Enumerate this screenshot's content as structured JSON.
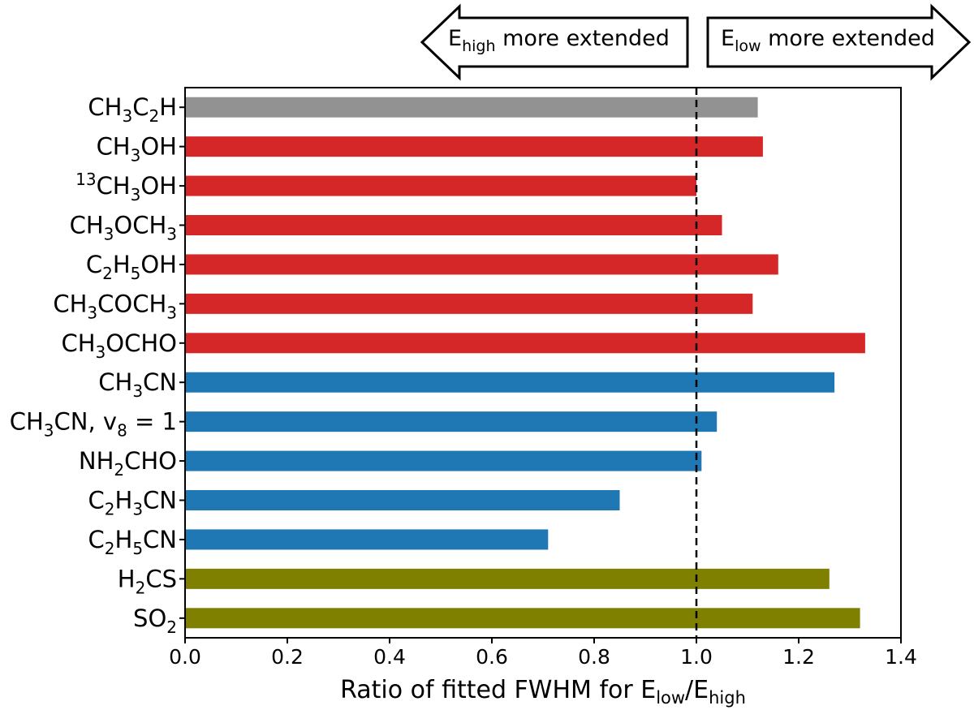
{
  "chart_data": {
    "type": "bar",
    "orientation": "horizontal",
    "categories": [
      "CH3C2H",
      "CH3OH",
      "13CH3OH",
      "CH3OCH3",
      "C2H5OH",
      "CH3COCH3",
      "CH3OCHO",
      "CH3CN",
      "CH3CN, v8 = 1",
      "NH2CHO",
      "C2H3CN",
      "C2H5CN",
      "H2CS",
      "SO2"
    ],
    "values": [
      1.12,
      1.13,
      1.0,
      1.05,
      1.16,
      1.11,
      1.33,
      1.27,
      1.04,
      1.01,
      0.85,
      0.71,
      1.26,
      1.32
    ],
    "bar_colors": [
      "#929292",
      "#d62728",
      "#d62728",
      "#d62728",
      "#d62728",
      "#d62728",
      "#d62728",
      "#1f77b4",
      "#1f77b4",
      "#1f77b4",
      "#1f77b4",
      "#1f77b4",
      "#808000",
      "#808000"
    ],
    "xlim": [
      0.0,
      1.4
    ],
    "xticks": [
      "0.0",
      "0.2",
      "0.4",
      "0.6",
      "0.8",
      "1.0",
      "1.2",
      "1.4"
    ],
    "xlabel": "Ratio of fitted FWHM for Elow/Ehigh",
    "reference_line": 1.0,
    "annotations": {
      "left_arrow": "Ehigh more extended",
      "right_arrow": "Elow more extended"
    },
    "grid": false
  }
}
